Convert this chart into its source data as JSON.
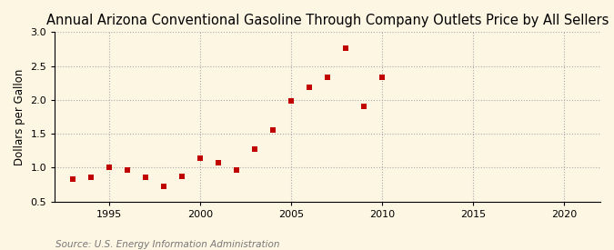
{
  "title": "Annual Arizona Conventional Gasoline Through Company Outlets Price by All Sellers",
  "ylabel": "Dollars per Gallon",
  "source": "Source: U.S. Energy Information Administration",
  "years": [
    1993,
    1994,
    1995,
    1996,
    1997,
    1998,
    1999,
    2000,
    2001,
    2002,
    2003,
    2004,
    2005,
    2006,
    2007,
    2008,
    2009,
    2010
  ],
  "values": [
    0.83,
    0.86,
    1.01,
    0.97,
    0.86,
    0.73,
    0.87,
    1.14,
    1.07,
    0.97,
    1.28,
    1.56,
    1.99,
    2.19,
    2.33,
    2.76,
    1.91,
    2.33
  ],
  "xlim": [
    1992,
    2022
  ],
  "ylim": [
    0.5,
    3.0
  ],
  "xticks": [
    1995,
    2000,
    2005,
    2010,
    2015,
    2020
  ],
  "yticks": [
    0.5,
    1.0,
    1.5,
    2.0,
    2.5,
    3.0
  ],
  "marker_color": "#c00000",
  "marker": "s",
  "marker_size": 4.5,
  "bg_color": "#fdf6e3",
  "plot_bg_color": "#fdf6e3",
  "title_fontsize": 10.5,
  "label_fontsize": 8.5,
  "tick_fontsize": 8,
  "source_fontsize": 7.5,
  "grid_color": "#aaaaaa",
  "grid_style": ":"
}
